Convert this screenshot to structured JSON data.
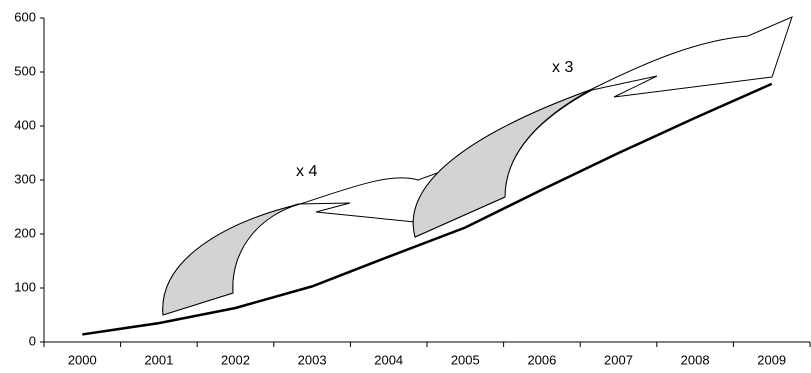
{
  "chart_data": {
    "type": "line",
    "categories": [
      "2000",
      "2001",
      "2002",
      "2003",
      "2004",
      "2005",
      "2006",
      "2007",
      "2008",
      "2009"
    ],
    "values": [
      14,
      35,
      63,
      103,
      158,
      212,
      282,
      350,
      415,
      478
    ],
    "color": "#000000",
    "ylim": [
      0,
      600
    ],
    "yticks": [
      0,
      100,
      200,
      300,
      400,
      500,
      600
    ],
    "annotations": [
      "x 4",
      "x 3"
    ]
  }
}
